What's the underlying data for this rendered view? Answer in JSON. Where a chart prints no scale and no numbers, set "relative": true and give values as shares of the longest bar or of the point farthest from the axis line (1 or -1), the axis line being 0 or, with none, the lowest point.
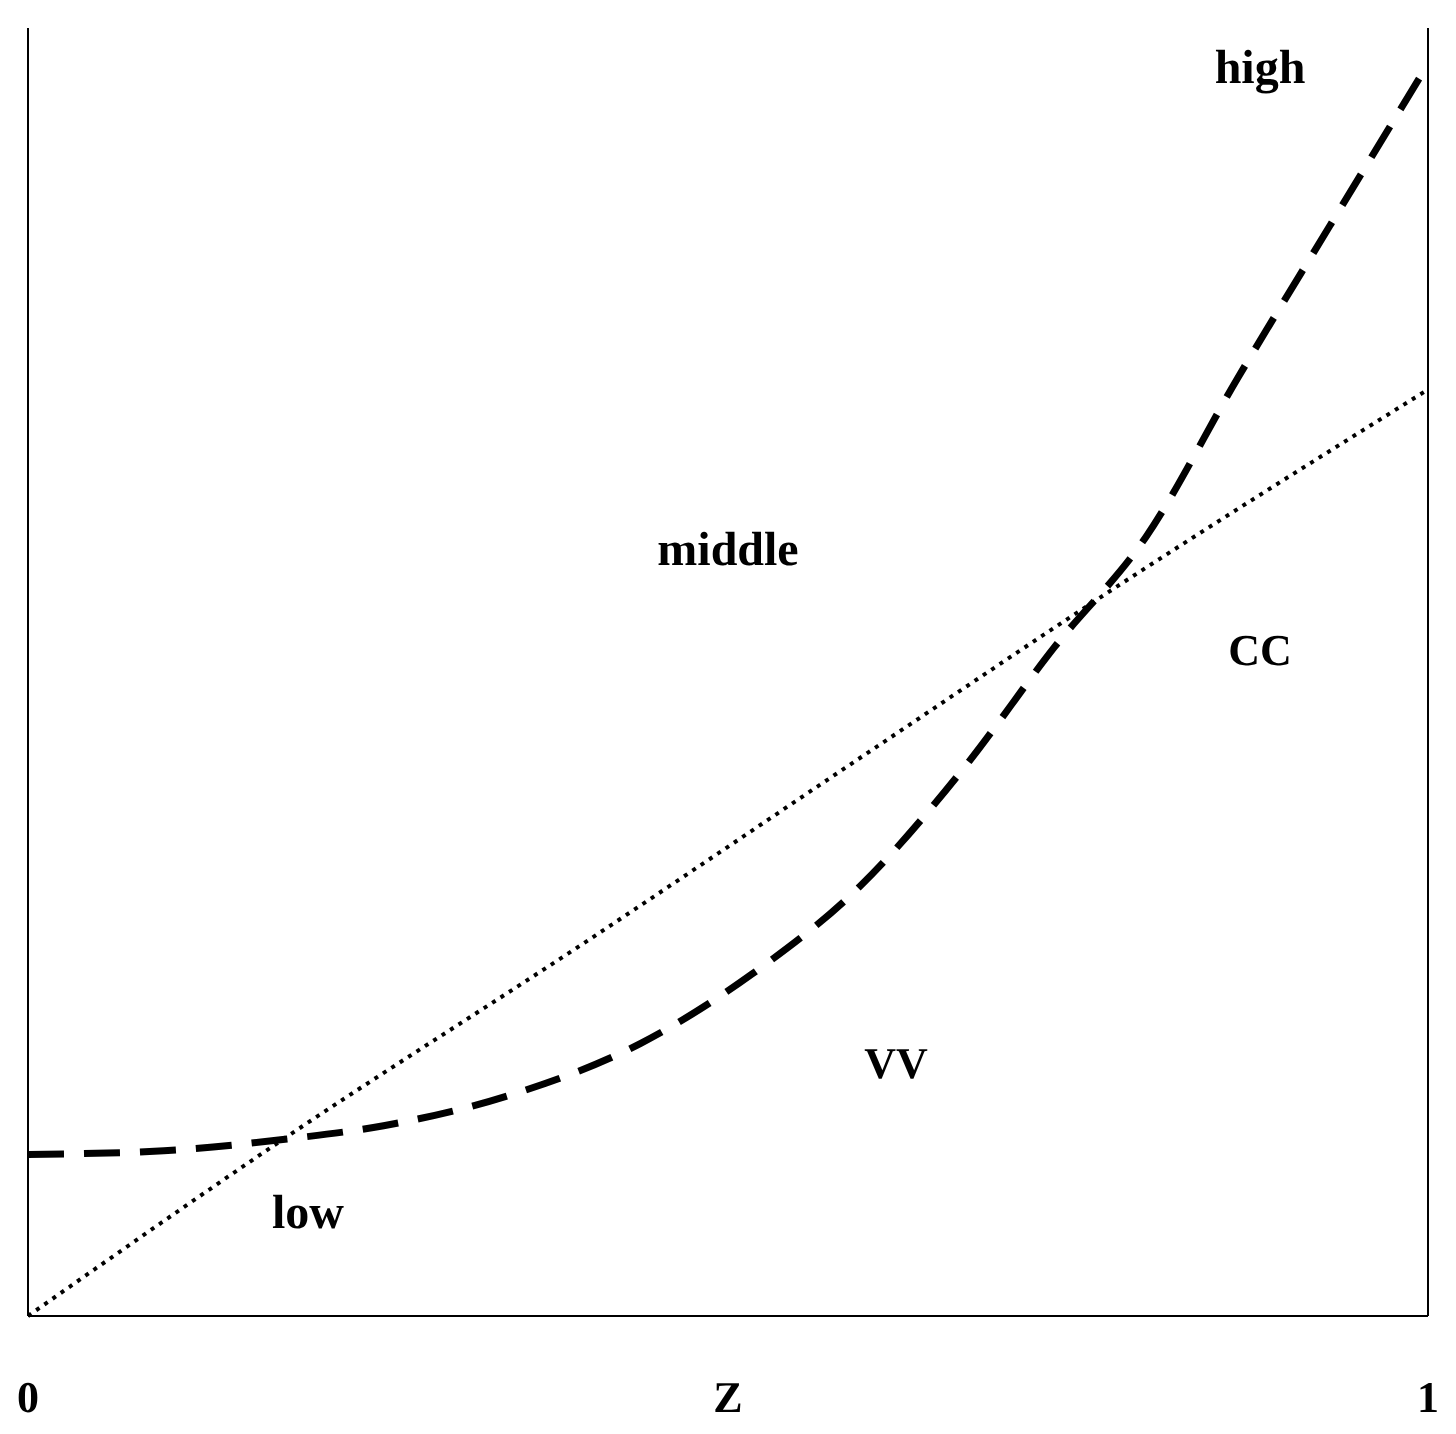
{
  "chart_data": {
    "type": "line",
    "relative": true,
    "xlabel": "Z",
    "xlim": [
      0,
      1
    ],
    "xticks": [
      0,
      1
    ],
    "annotations": [
      "high",
      "middle",
      "low"
    ],
    "series": [
      {
        "name": "VV",
        "color": "#000000",
        "line_style": "dashed",
        "x": [
          0,
          0.097,
          0.182,
          0.254,
          0.346,
          0.438,
          0.517,
          0.595,
          0.668,
          0.733,
          0.799,
          0.864,
          0.93,
          1
        ],
        "values": [
          0.129,
          0.132,
          0.141,
          0.152,
          0.177,
          0.218,
          0.273,
          0.344,
          0.437,
          0.534,
          0.623,
          0.749,
          0.871,
          1
        ]
      },
      {
        "name": "CC",
        "color": "#000000",
        "line_style": "dotted",
        "x": [
          0,
          0.182,
          0.4,
          0.6,
          0.766,
          1
        ],
        "values": [
          0,
          0.141,
          0.3,
          0.45,
          0.574,
          0.74
        ]
      }
    ]
  }
}
